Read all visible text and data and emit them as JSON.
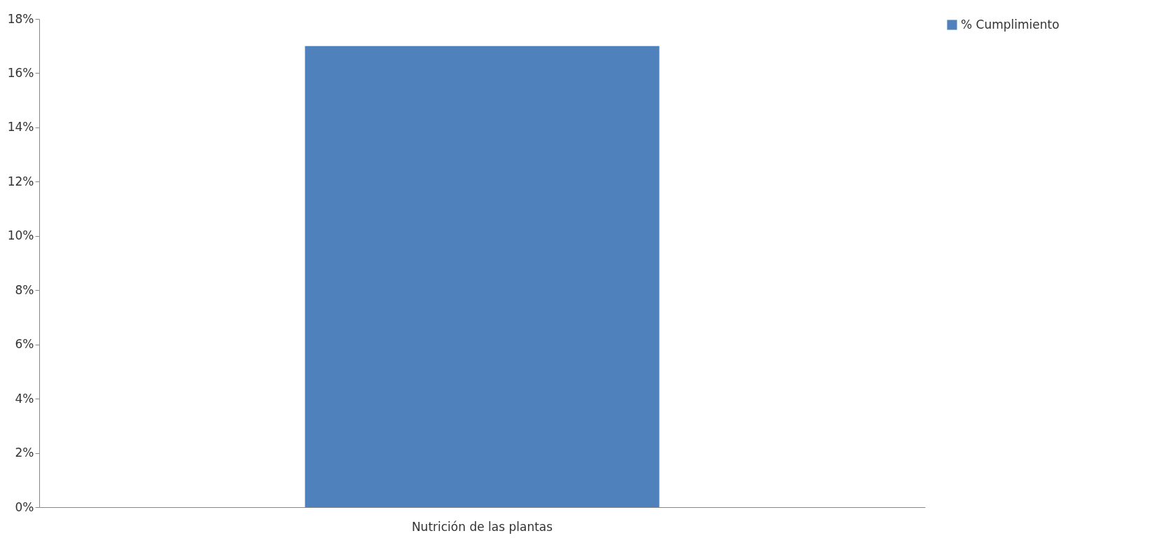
{
  "chart_data": {
    "type": "bar",
    "categories": [
      "Nutrición de las plantas"
    ],
    "series": [
      {
        "name": "% Cumplimiento",
        "color": "#4f81bd",
        "values": [
          17
        ]
      }
    ],
    "ylim": [
      0,
      18
    ],
    "yticks": [
      {
        "value": 0,
        "label": "0%"
      },
      {
        "value": 2,
        "label": "2%"
      },
      {
        "value": 4,
        "label": "4%"
      },
      {
        "value": 6,
        "label": "6%"
      },
      {
        "value": 8,
        "label": "8%"
      },
      {
        "value": 10,
        "label": "10%"
      },
      {
        "value": 12,
        "label": "12%"
      },
      {
        "value": 14,
        "label": "14%"
      },
      {
        "value": 16,
        "label": "16%"
      },
      {
        "value": 18,
        "label": "18%"
      }
    ],
    "grid": false,
    "legend": "right"
  }
}
